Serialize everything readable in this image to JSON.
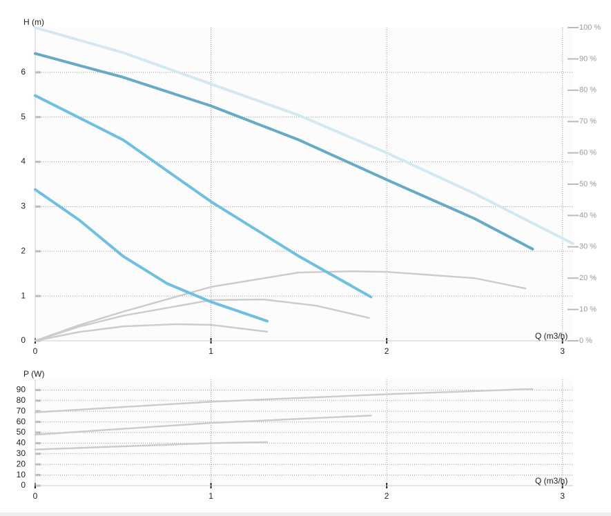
{
  "chart_data": [
    {
      "type": "line",
      "y_label": "H (m)",
      "x_label": "Q (m3/h)",
      "xlim": [
        0,
        3.06
      ],
      "xticks": [
        0,
        1,
        2,
        3
      ],
      "ylim": [
        0,
        7
      ],
      "yticks": [
        0,
        1,
        2,
        3,
        4,
        5,
        6
      ],
      "y2lim": [
        0,
        100
      ],
      "y2ticks": [
        {
          "value": 0,
          "label": "0 %"
        },
        {
          "value": 10,
          "label": "10 %"
        },
        {
          "value": 20,
          "label": "20 %"
        },
        {
          "value": 30,
          "label": "30 %"
        },
        {
          "value": 40,
          "label": "40 %"
        },
        {
          "value": 50,
          "label": "50 %"
        },
        {
          "value": 60,
          "label": "60 %"
        },
        {
          "value": 70,
          "label": "70 %"
        },
        {
          "value": 80,
          "label": "80 %"
        },
        {
          "value": 90,
          "label": "90 %"
        },
        {
          "value": 100,
          "label": "100 %"
        }
      ],
      "grid": true,
      "series": [
        {
          "color": "#d2e9f4",
          "axis": "y2",
          "dashed": true,
          "x": [
            0,
            0.5,
            1,
            1.5,
            2,
            2.5,
            3.06
          ],
          "values": [
            100,
            92,
            82,
            72,
            60,
            47,
            31
          ]
        },
        {
          "color": "#cccccc",
          "axis": "y2",
          "x": [
            0,
            0.25,
            0.5,
            1,
            1.5,
            1.8,
            2,
            2.5,
            2.79
          ],
          "values": [
            0,
            5,
            9.3,
            17.2,
            21.8,
            22.2,
            22,
            20,
            16.7
          ]
        },
        {
          "color": "#cccccc",
          "axis": "y2",
          "x": [
            0,
            0.25,
            0.5,
            1,
            1.3,
            1.6,
            1.9
          ],
          "values": [
            0,
            4.5,
            8,
            13,
            13.2,
            11.2,
            7.3
          ]
        },
        {
          "color": "#cccccc",
          "axis": "y2",
          "x": [
            0,
            0.25,
            0.5,
            0.8,
            1,
            1.32
          ],
          "values": [
            0,
            2.8,
            4.6,
            5.3,
            5.1,
            2.9
          ]
        },
        {
          "color": "#66aac7",
          "x": [
            0,
            0.5,
            1,
            1.5,
            2,
            2.5,
            2.83
          ],
          "values": [
            6.42,
            5.89,
            5.25,
            4.49,
            3.6,
            2.73,
            2.05
          ]
        },
        {
          "color": "#6ec0e2",
          "x": [
            0,
            0.5,
            1,
            1.5,
            1.91
          ],
          "values": [
            5.48,
            4.49,
            3.11,
            1.89,
            0.98
          ]
        },
        {
          "color": "#6ec0e2",
          "x": [
            0,
            0.25,
            0.5,
            0.75,
            1,
            1.32
          ],
          "values": [
            3.38,
            2.7,
            1.89,
            1.28,
            0.87,
            0.44
          ]
        }
      ]
    },
    {
      "type": "line",
      "y_label": "P (W)",
      "x_label": "Q (m3/h)",
      "xlim": [
        0,
        3.06
      ],
      "xticks": [
        0,
        1,
        2,
        3
      ],
      "ylim": [
        0,
        100
      ],
      "yticks": [
        0,
        10,
        20,
        30,
        40,
        50,
        60,
        70,
        80,
        90
      ],
      "grid": true,
      "series": [
        {
          "color": "#cccccc",
          "x": [
            0,
            1,
            2,
            2.83
          ],
          "values": [
            69,
            79,
            86,
            91
          ]
        },
        {
          "color": "#cccccc",
          "x": [
            0,
            1,
            1.91
          ],
          "values": [
            48,
            59,
            66
          ]
        },
        {
          "color": "#cccccc",
          "x": [
            0,
            0.5,
            1,
            1.32
          ],
          "values": [
            34,
            37,
            40,
            41
          ]
        }
      ]
    }
  ]
}
